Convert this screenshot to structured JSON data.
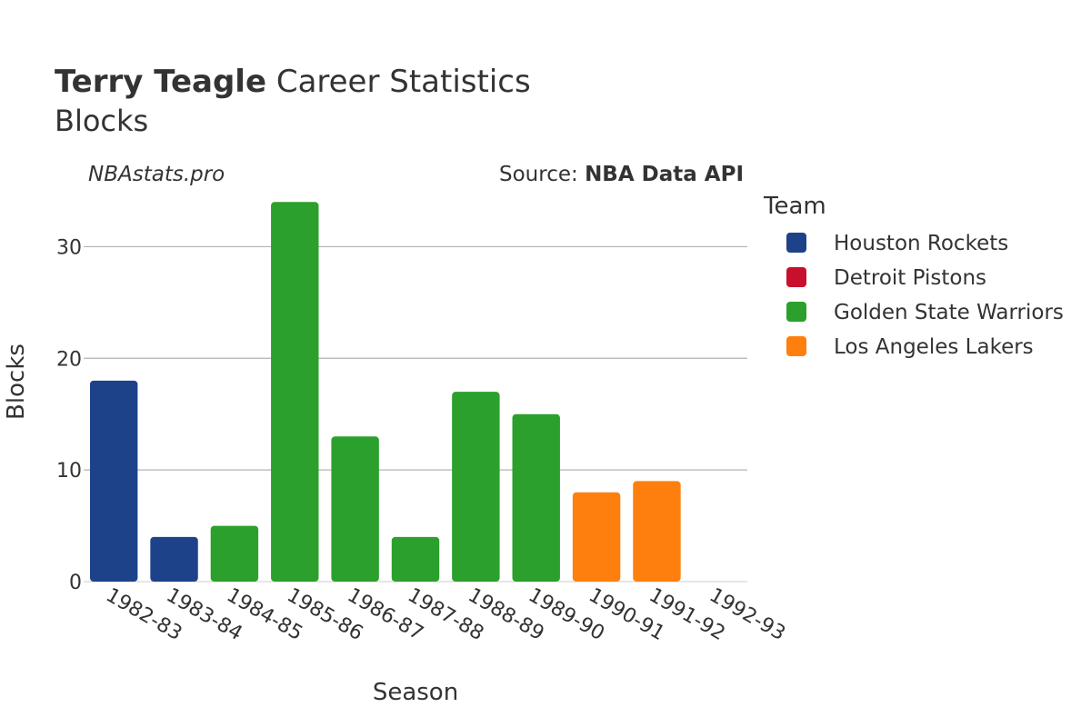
{
  "header": {
    "player_name": "Terry Teagle",
    "title_rest": " Career Statistics",
    "subtitle": "Blocks"
  },
  "watermark": "NBAstats.pro",
  "source": {
    "prefix": "Source: ",
    "name": "NBA Data API"
  },
  "chart_data": {
    "type": "bar",
    "xlabel": "Season",
    "ylabel": "Blocks",
    "ylim": [
      0,
      35
    ],
    "yticks": [
      0,
      10,
      20,
      30
    ],
    "grid": true,
    "legend_title": "Team",
    "legend_position": "right",
    "teams": [
      {
        "name": "Houston Rockets",
        "color": "#1d428a"
      },
      {
        "name": "Detroit Pistons",
        "color": "#c8102e"
      },
      {
        "name": "Golden State Warriors",
        "color": "#2ca02c"
      },
      {
        "name": "Los Angeles Lakers",
        "color": "#ff7f0e"
      }
    ],
    "categories": [
      "1982-83",
      "1983-84",
      "1984-85",
      "1985-86",
      "1986-87",
      "1987-88",
      "1988-89",
      "1989-90",
      "1990-91",
      "1991-92",
      "1992-93"
    ],
    "bars": [
      {
        "season": "1982-83",
        "team": "Houston Rockets",
        "value": 18
      },
      {
        "season": "1983-84",
        "team": "Houston Rockets",
        "value": 4
      },
      {
        "season": "1984-85",
        "team": "Golden State Warriors",
        "value": 5
      },
      {
        "season": "1985-86",
        "team": "Golden State Warriors",
        "value": 34
      },
      {
        "season": "1986-87",
        "team": "Golden State Warriors",
        "value": 13
      },
      {
        "season": "1987-88",
        "team": "Golden State Warriors",
        "value": 4
      },
      {
        "season": "1988-89",
        "team": "Golden State Warriors",
        "value": 17
      },
      {
        "season": "1989-90",
        "team": "Golden State Warriors",
        "value": 15
      },
      {
        "season": "1990-91",
        "team": "Los Angeles Lakers",
        "value": 8
      },
      {
        "season": "1991-92",
        "team": "Los Angeles Lakers",
        "value": 9
      },
      {
        "season": "1992-93",
        "team": "Detroit Pistons",
        "value": 0
      }
    ]
  }
}
